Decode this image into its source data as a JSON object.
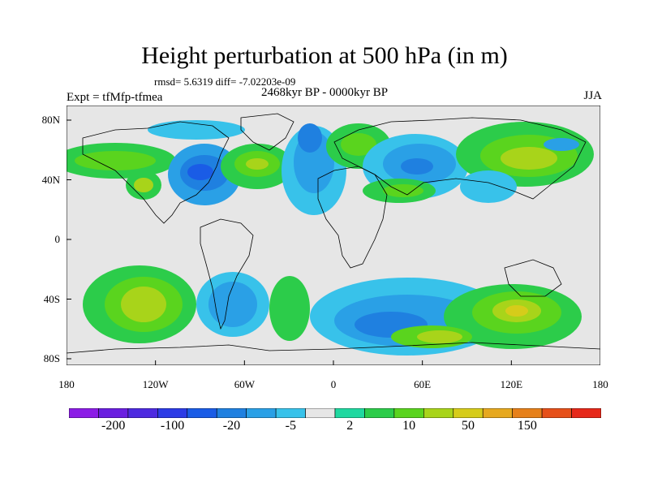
{
  "title": "Height perturbation at 500 hPa (in m)",
  "stats": "rmsd= 5.6319 diff= -7.02203e-09",
  "experiment": "Expt = tfMfp-tfmea",
  "period": "2468kyr BP - 0000kyr BP",
  "season": "JJA",
  "x_ticks": [
    "180",
    "120W",
    "60W",
    "0",
    "60E",
    "120E",
    "180"
  ],
  "y_ticks": [
    "80N",
    "40N",
    "0",
    "40S",
    "80S"
  ],
  "colorbar": {
    "colors": [
      "#8c1ce6",
      "#6a1ee0",
      "#4d2ae0",
      "#2c3be6",
      "#1a5ce6",
      "#1f80e0",
      "#2aa0e6",
      "#38c2ea",
      "#e6e6e6",
      "#1fd8a0",
      "#2ccc4a",
      "#5ad41e",
      "#a8d41a",
      "#d6cc1a",
      "#e6a81f",
      "#e6801a",
      "#e6501a",
      "#e6281a"
    ],
    "labels": [
      "-200",
      "-100",
      "-20",
      "-5",
      "2",
      "10",
      "50",
      "150"
    ]
  },
  "land_color": "#ececec",
  "coastline_color": "#000000"
}
